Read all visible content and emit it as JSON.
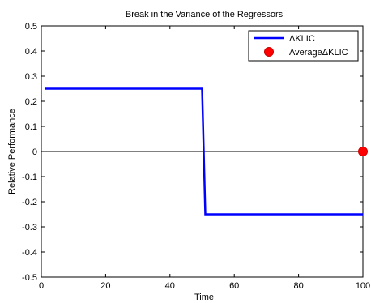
{
  "chart_data": {
    "type": "line",
    "title": "Break in the Variance of the Regressors",
    "xlabel": "Time",
    "ylabel": "Relative Performance",
    "xlim": [
      0,
      100
    ],
    "ylim": [
      -0.5,
      0.5
    ],
    "x_ticks": [
      0,
      20,
      40,
      60,
      80,
      100
    ],
    "y_ticks": [
      -0.5,
      -0.4,
      -0.3,
      -0.2,
      -0.1,
      0,
      0.1,
      0.2,
      0.3,
      0.4,
      0.5
    ],
    "x_tick_labels": [
      "0",
      "20",
      "40",
      "60",
      "80",
      "100"
    ],
    "y_tick_labels": [
      "-0.5",
      "-0.4",
      "-0.3",
      "-0.2",
      "-0.1",
      "0",
      "0.1",
      "0.2",
      "0.3",
      "0.4",
      "0.5"
    ],
    "grid": false,
    "legend_position": "top-right",
    "reference_line": {
      "y": 0,
      "color": "#000000"
    },
    "series": [
      {
        "name": "ΔKLIC",
        "kind": "line",
        "color": "#0000ff",
        "x": [
          1,
          50,
          51,
          100
        ],
        "y": [
          0.25,
          0.25,
          -0.25,
          -0.25
        ]
      },
      {
        "name": "AverageΔKLIC",
        "kind": "point",
        "color": "#ff0000",
        "x": [
          100
        ],
        "y": [
          0
        ]
      }
    ]
  }
}
